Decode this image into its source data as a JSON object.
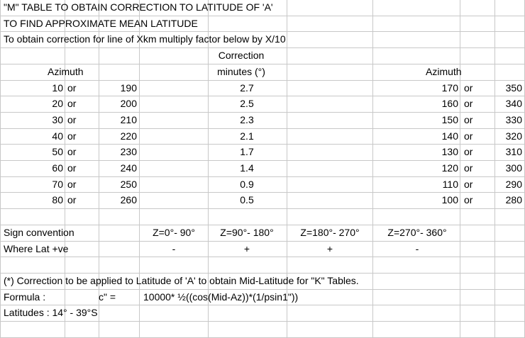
{
  "title_lines": [
    "\"M\" TABLE TO OBTAIN CORRECTION TO LATITUDE OF 'A'",
    "TO FIND APPROXIMATE MEAN LATITUDE",
    "To obtain correction for line of Xkm multiply factor below by X/10"
  ],
  "header": {
    "correction_label": "Correction",
    "azimuth_left": "Azimuth",
    "minutes_label": "minutes (°)",
    "azimuth_right": "Azimuth"
  },
  "rows": [
    {
      "az1": 10,
      "or1": "or",
      "az2": 190,
      "correction": 2.7,
      "az3": 170,
      "or2": "or",
      "az4": 350
    },
    {
      "az1": 20,
      "or1": "or",
      "az2": 200,
      "correction": 2.5,
      "az3": 160,
      "or2": "or",
      "az4": 340
    },
    {
      "az1": 30,
      "or1": "or",
      "az2": 210,
      "correction": 2.3,
      "az3": 150,
      "or2": "or",
      "az4": 330
    },
    {
      "az1": 40,
      "or1": "or",
      "az2": 220,
      "correction": 2.1,
      "az3": 140,
      "or2": "or",
      "az4": 320
    },
    {
      "az1": 50,
      "or1": "or",
      "az2": 230,
      "correction": 1.7,
      "az3": 130,
      "or2": "or",
      "az4": 310
    },
    {
      "az1": 60,
      "or1": "or",
      "az2": 240,
      "correction": 1.4,
      "az3": 120,
      "or2": "or",
      "az4": 300
    },
    {
      "az1": 70,
      "or1": "or",
      "az2": 250,
      "correction": 0.9,
      "az3": 110,
      "or2": "or",
      "az4": 290
    },
    {
      "az1": 80,
      "or1": "or",
      "az2": 260,
      "correction": 0.5,
      "az3": 100,
      "or2": "or",
      "az4": 280
    }
  ],
  "sign": {
    "label": "Sign convention",
    "zones": [
      "Z=0°- 90°",
      "Z=90°- 180°",
      "Z=180°- 270°",
      "Z=270°- 360°"
    ],
    "lat_label": "Where Lat +ve",
    "signs": [
      "-",
      "+",
      "+",
      "-"
    ]
  },
  "notes": {
    "correction_note": "(*) Correction to be applied to Latitude of 'A' to obtain Mid-Latitude for \"K\" Tables.",
    "formula_label": "Formula :",
    "formula_var": "c\" =",
    "formula": "10000* ½((cos(Mid-Az))*(1/psin1\"))",
    "latitudes": "Latitudes : 14° - 39°S"
  }
}
